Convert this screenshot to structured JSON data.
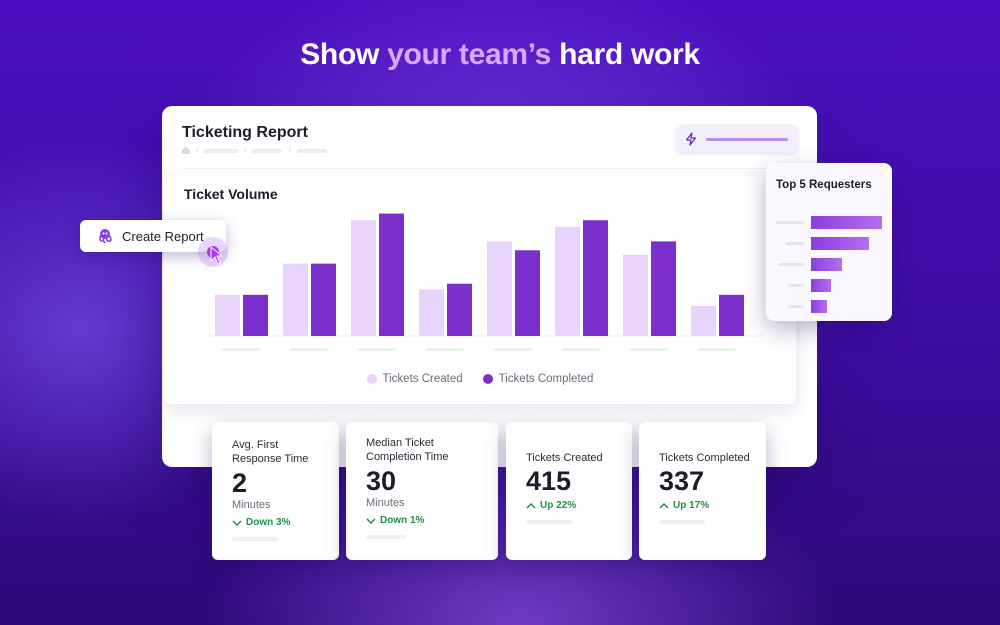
{
  "headline": {
    "part1": "Show ",
    "highlight": "your team’s",
    "part2": " hard work"
  },
  "report": {
    "title": "Ticketing Report"
  },
  "chart_panel": {
    "title": "Ticket Volume"
  },
  "create_report": {
    "label": "Create Report"
  },
  "top_requesters": {
    "title": "Top 5 Requesters",
    "values": [
      1.0,
      0.81,
      0.44,
      0.28,
      0.22
    ]
  },
  "colors": {
    "created": "#e8d4fb",
    "completed": "#7b2fcb",
    "accent": "#a737e8",
    "positive": "#1f8f4a"
  },
  "chart_data": {
    "type": "bar",
    "categories": [
      "",
      "",
      "",
      "",
      "",
      "",
      "",
      ""
    ],
    "series": [
      {
        "name": "Tickets Created",
        "values": [
          37,
          65,
          104,
          42,
          85,
          98,
          73,
          27
        ]
      },
      {
        "name": "Tickets Completed",
        "values": [
          37,
          65,
          110,
          47,
          77,
          104,
          85,
          37
        ]
      }
    ],
    "title": "Ticket Volume",
    "ylim": [
      0,
      115
    ],
    "grid": false,
    "legend": "bottom"
  },
  "stats": [
    {
      "label_line1": "Avg. First",
      "label_line2": "Response Time",
      "value": "2",
      "unit": "Minutes",
      "change": "Down 3%",
      "direction": "down"
    },
    {
      "label_line1": "Median Ticket",
      "label_line2": "Completion Time",
      "value": "30",
      "unit": "Minutes",
      "change": "Down 1%",
      "direction": "down"
    },
    {
      "label_line1": "Tickets Created",
      "value": "415",
      "change": "Up 22%",
      "direction": "up"
    },
    {
      "label_line1": "Tickets Completed",
      "value": "337",
      "change": "Up 17%",
      "direction": "up"
    }
  ]
}
